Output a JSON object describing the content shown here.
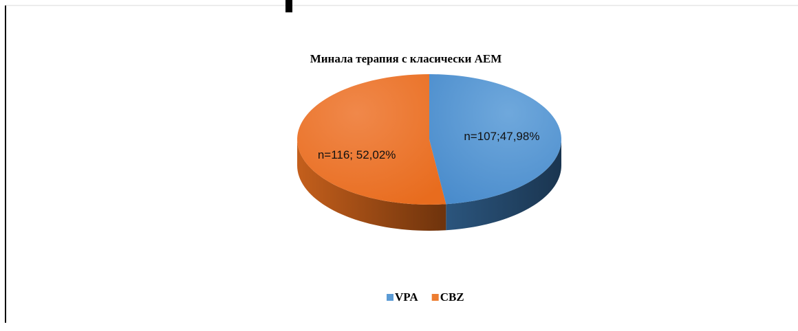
{
  "chart_data": {
    "type": "pie",
    "title": "Минала терапия с класически АЕМ",
    "categories": [
      "VPA",
      "CBZ"
    ],
    "values": [
      47.98,
      52.02
    ],
    "value_labels": [
      "n=107;47,98%",
      "n=116; 52,02%"
    ],
    "colors": [
      "#5b9bd5",
      "#ed7d31"
    ],
    "legend": "bottom"
  }
}
